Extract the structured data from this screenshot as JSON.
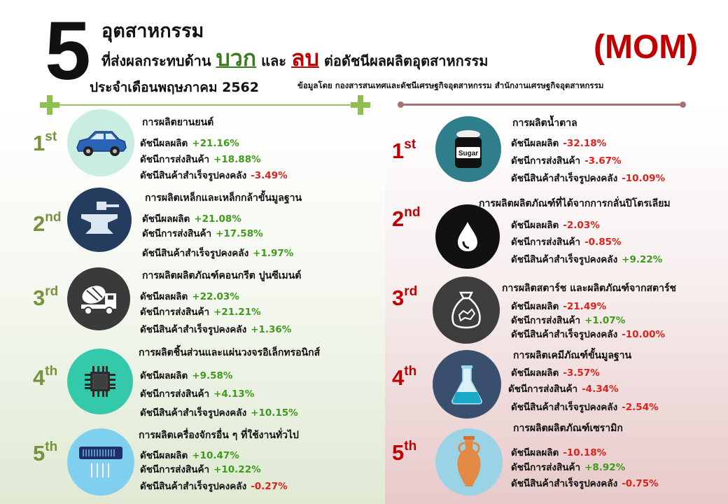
{
  "header": {
    "number": "5",
    "title_line1": "อุตสาหกรรม",
    "title_line2_pre": "ที่ส่งผลกระทบด้าน",
    "positive_word": "บวก",
    "title_line2_mid": "และ",
    "negative_word": "ลบ",
    "title_line2_post": "ต่อดัชนีผลผลิตอุตสาหกรรม",
    "period": "ประจำเดือนพฤษภาคม 2562",
    "source": "ข้อมูลโดย กองสารสนเทศและดัชนีเศรษฐกิจอุตสาหกรรม สำนักงานเศรษฐกิจอุตสาหกรรม",
    "tag": "(MOM)"
  },
  "labels": {
    "production_index": "ดัชนีผลผลิต",
    "shipment_index": "ดัชนีการส่งสินค้า",
    "inventory_index": "ดัชนีสินค้าสำเร็จรูปคงคลัง"
  },
  "colors": {
    "positive": "#3e9a1a",
    "negative": "#e0201a",
    "rank_green": "#76923c",
    "rank_red": "#c00000"
  },
  "positive": [
    {
      "rank": "1",
      "suffix": "st",
      "icon": "car-icon",
      "name": "การผลิตยานยนต์",
      "production": "+21.16%",
      "shipment": "+18.88%",
      "inventory": "-3.49%"
    },
    {
      "rank": "2",
      "suffix": "nd",
      "icon": "anvil-icon",
      "name": "การผลิตเหล็กและเหล็กกล้าขั้นมูลฐาน",
      "production": "+21.08%",
      "shipment": "+17.58%",
      "inventory": "+1.97%"
    },
    {
      "rank": "3",
      "suffix": "rd",
      "icon": "cement-truck-icon",
      "name": "การผลิตผลิตภัณฑ์คอนกรีต ปูนซีเมนต์",
      "production": "+22.03%",
      "shipment": "+21.21%",
      "inventory": "+1.36%"
    },
    {
      "rank": "4",
      "suffix": "th",
      "icon": "chip-icon",
      "name": "การผลิตชิ้นส่วนและแผ่นวงจรอิเล็กทรอนิกส์",
      "production": "+9.58%",
      "shipment": "+4.13%",
      "inventory": "+10.15%"
    },
    {
      "rank": "5",
      "suffix": "th",
      "icon": "air-conditioner-icon",
      "name": "การผลิตเครื่องจักรอื่น ๆ ที่ใช้งานทั่วไป",
      "production": "+10.47%",
      "shipment": "+10.22%",
      "inventory": "-0.27%"
    }
  ],
  "negative": [
    {
      "rank": "1",
      "suffix": "st",
      "icon": "sugar-jar-icon",
      "icon_text": "Sugar",
      "name": "การผลิตน้ำตาล",
      "production": "-32.18%",
      "shipment": "-3.67%",
      "inventory": "-10.09%"
    },
    {
      "rank": "2",
      "suffix": "nd",
      "icon": "oil-drop-icon",
      "name": "การผลิตผลิตภัณฑ์ที่ได้จากการกลั่นปิโตรเลียม",
      "production": "-2.03%",
      "shipment": "-0.85%",
      "inventory": "+9.22%"
    },
    {
      "rank": "3",
      "suffix": "rd",
      "icon": "starch-sack-icon",
      "name": "การผลิตสตาร์ช และผลิตภัณฑ์จากสตาร์ช",
      "production": "-21.49%",
      "shipment": "+1.07%",
      "inventory": "-10.00%"
    },
    {
      "rank": "4",
      "suffix": "th",
      "icon": "flask-icon",
      "name": "การผลิตเคมีภัณฑ์ขั้นมูลฐาน",
      "production": "-3.57%",
      "shipment": "-4.34%",
      "inventory": "-2.54%"
    },
    {
      "rank": "5",
      "suffix": "th",
      "icon": "vase-icon",
      "name": "การผลิตผลิตภัณฑ์เซรามิก",
      "production": "-10.18%",
      "shipment": "+8.92%",
      "inventory": "-0.75%"
    }
  ]
}
